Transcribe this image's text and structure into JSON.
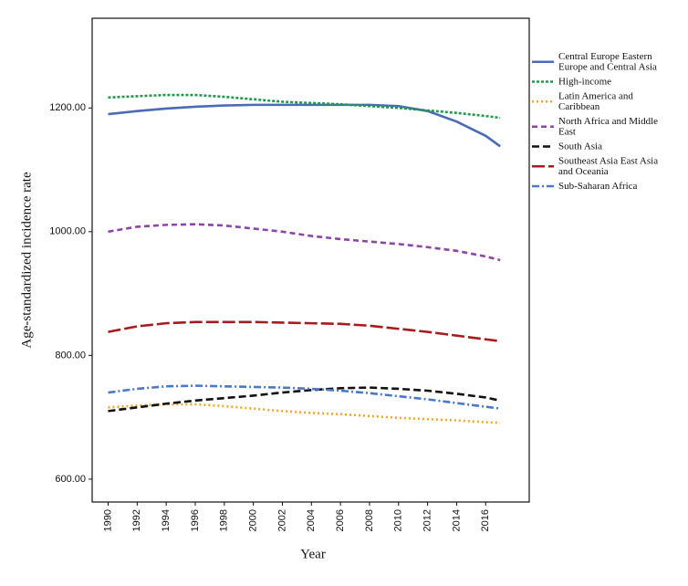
{
  "chart_data": {
    "type": "line",
    "xlabel": "Year",
    "ylabel": "Age-standardized incidence rate",
    "x": [
      1990,
      1992,
      1994,
      1996,
      1998,
      2000,
      2002,
      2004,
      2006,
      2008,
      2010,
      2012,
      2014,
      2016,
      2017
    ],
    "xlim": [
      1988.9,
      2019
    ],
    "xticks": [
      1990,
      1992,
      1994,
      1996,
      1998,
      2000,
      2002,
      2004,
      2006,
      2008,
      2010,
      2012,
      2014,
      2016
    ],
    "ylim": [
      563,
      1345
    ],
    "yticks": [
      {
        "value": 600,
        "label": "600.00"
      },
      {
        "value": 800,
        "label": "800.00"
      },
      {
        "value": 1000,
        "label": "1000.00"
      },
      {
        "value": 1200,
        "label": "1200.00"
      }
    ],
    "series": [
      {
        "name": "Central Europe Eastern Europe and Central Asia",
        "color": "#4a6bb5",
        "dash": "",
        "values": [
          1190,
          1195,
          1199,
          1202,
          1204,
          1205,
          1205,
          1205,
          1205,
          1205,
          1203,
          1195,
          1178,
          1155,
          1138
        ]
      },
      {
        "name": "High-income",
        "color": "#1f9a4a",
        "dash": "3,2",
        "values": [
          1217,
          1219,
          1221,
          1221,
          1218,
          1214,
          1210,
          1208,
          1206,
          1203,
          1200,
          1196,
          1192,
          1187,
          1184
        ]
      },
      {
        "name": "Latin America and Caribbean",
        "color": "#f5a623",
        "dash": "2,3",
        "values": [
          716,
          719,
          721,
          721,
          718,
          714,
          710,
          707,
          705,
          702,
          699,
          697,
          695,
          692,
          691
        ]
      },
      {
        "name": "North Africa and Middle East",
        "color": "#8e44a8",
        "dash": "6,4",
        "values": [
          1000,
          1008,
          1011,
          1012,
          1010,
          1005,
          1000,
          993,
          988,
          984,
          980,
          975,
          969,
          960,
          954
        ]
      },
      {
        "name": "South Asia",
        "color": "#111111",
        "dash": "8,4",
        "values": [
          710,
          716,
          722,
          727,
          731,
          735,
          740,
          744,
          747,
          748,
          746,
          743,
          738,
          732,
          727
        ]
      },
      {
        "name": "Southeast Asia East Asia and Oceania",
        "color": "#a61c1c",
        "dash": "14,4",
        "values": [
          838,
          847,
          852,
          854,
          854,
          854,
          853,
          852,
          851,
          848,
          843,
          838,
          832,
          826,
          823
        ]
      },
      {
        "name": "Sub-Saharan Africa",
        "color": "#4a78c8",
        "dash": "8,3,2,3",
        "values": [
          740,
          746,
          750,
          751,
          750,
          749,
          748,
          746,
          743,
          739,
          734,
          729,
          723,
          717,
          714
        ]
      }
    ]
  }
}
